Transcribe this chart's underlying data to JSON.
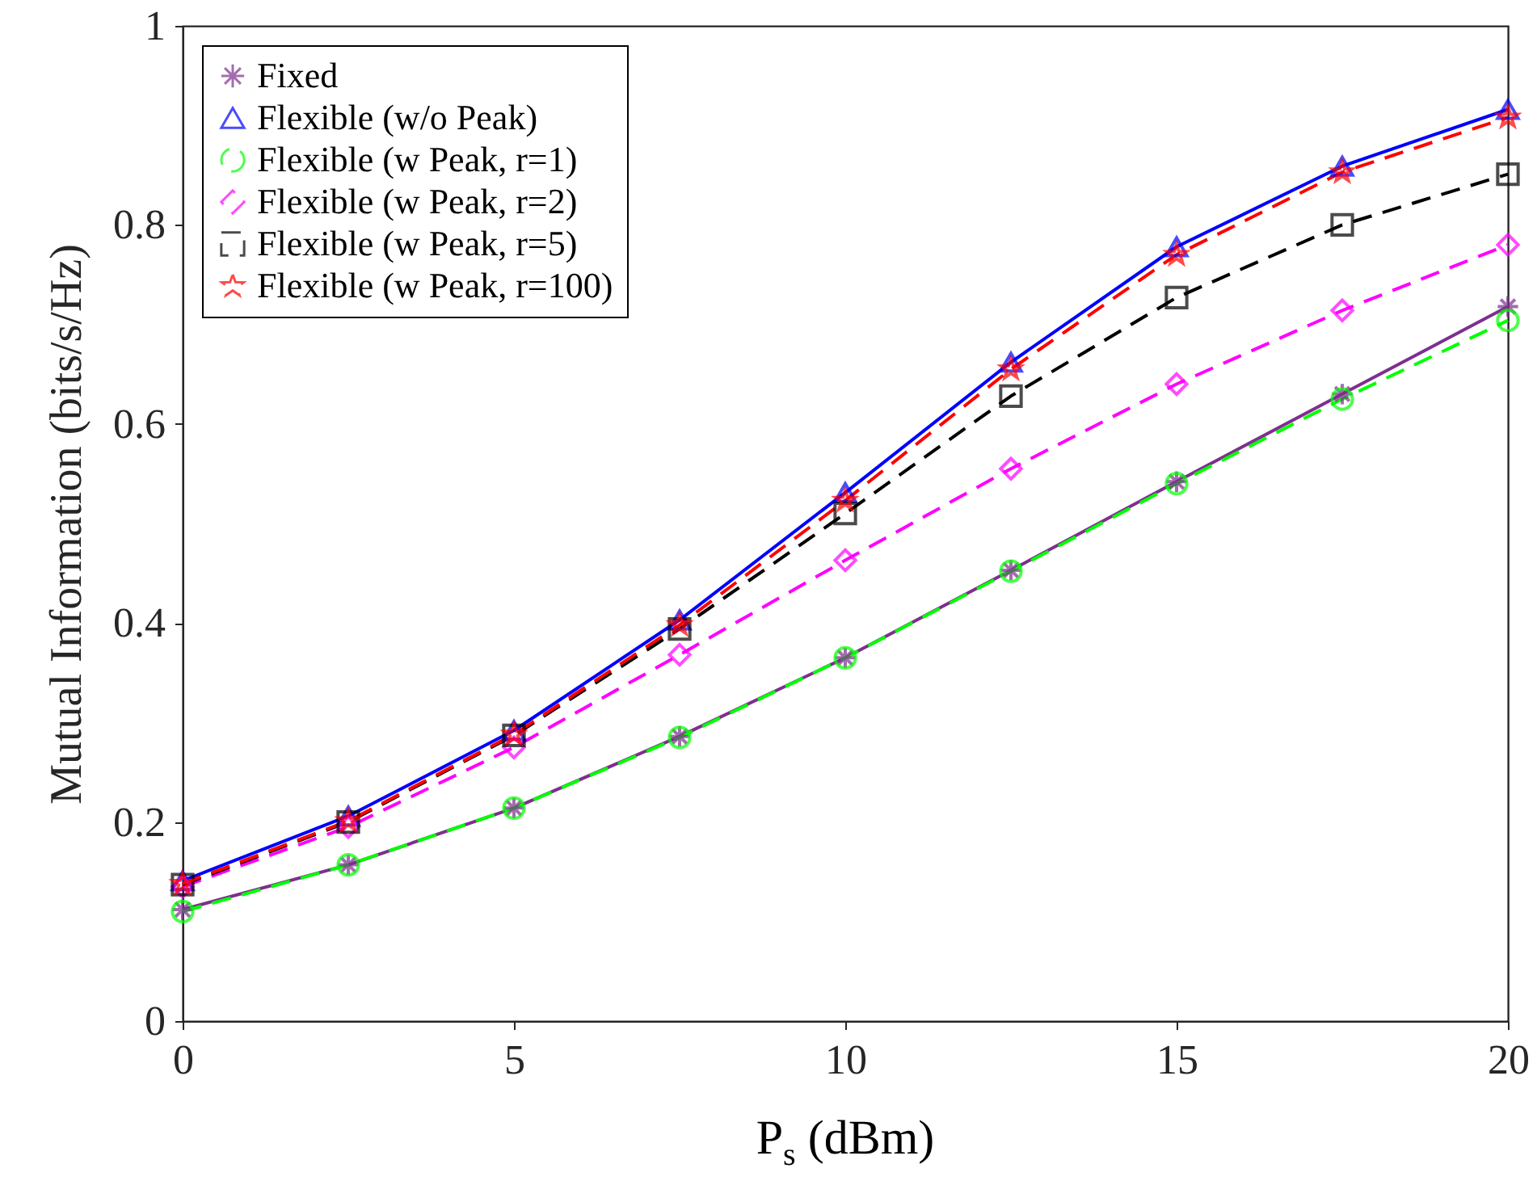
{
  "chart_data": {
    "type": "line",
    "xlabel": "P$_{s}$ (dBm)",
    "ylabel": "Mutual Information (bits/s/Hz)",
    "x": [
      0,
      2.5,
      5,
      7.5,
      10,
      12.5,
      15,
      17.5,
      20
    ],
    "xlim": [
      0,
      20
    ],
    "xticks": [
      0,
      5,
      10,
      15,
      20
    ],
    "ylim": [
      0,
      1
    ],
    "yticks": [
      0,
      0.2,
      0.4,
      0.6,
      0.8,
      1
    ],
    "grid": false,
    "legend": "top left",
    "series": [
      {
        "name": "Fixed",
        "color": "#7e2f8e",
        "marker": "cross",
        "line_style": "solid",
        "values": [
          0.112,
          0.157,
          0.214,
          0.286,
          0.365,
          0.453,
          0.542,
          0.63,
          0.718
        ]
      },
      {
        "name": "Flexible (w/o Peak)",
        "color": "#0000ff",
        "marker": "triangle",
        "line_style": "solid",
        "values": [
          0.141,
          0.206,
          0.292,
          0.403,
          0.531,
          0.662,
          0.778,
          0.859,
          0.916
        ]
      },
      {
        "name": "Flexible (w Peak, r=1)",
        "color": "#00ff00",
        "marker": "circle",
        "line_style": "dashed",
        "values": [
          0.11,
          0.157,
          0.214,
          0.285,
          0.365,
          0.452,
          0.54,
          0.625,
          0.704
        ]
      },
      {
        "name": "Flexible (w Peak, r=2)",
        "color": "#ff00ff",
        "marker": "diamond",
        "line_style": "dashed",
        "values": [
          0.135,
          0.195,
          0.275,
          0.368,
          0.463,
          0.555,
          0.64,
          0.714,
          0.78
        ]
      },
      {
        "name": "Flexible (w Peak, r=5)",
        "color": "#000000",
        "marker": "square",
        "line_style": "dashed",
        "values": [
          0.137,
          0.2,
          0.287,
          0.394,
          0.51,
          0.628,
          0.727,
          0.8,
          0.851
        ]
      },
      {
        "name": "Flexible (w Peak, r=100)",
        "color": "#ff0000",
        "marker": "star",
        "line_style": "dashed",
        "values": [
          0.138,
          0.201,
          0.288,
          0.398,
          0.523,
          0.655,
          0.77,
          0.853,
          0.908
        ]
      }
    ]
  }
}
